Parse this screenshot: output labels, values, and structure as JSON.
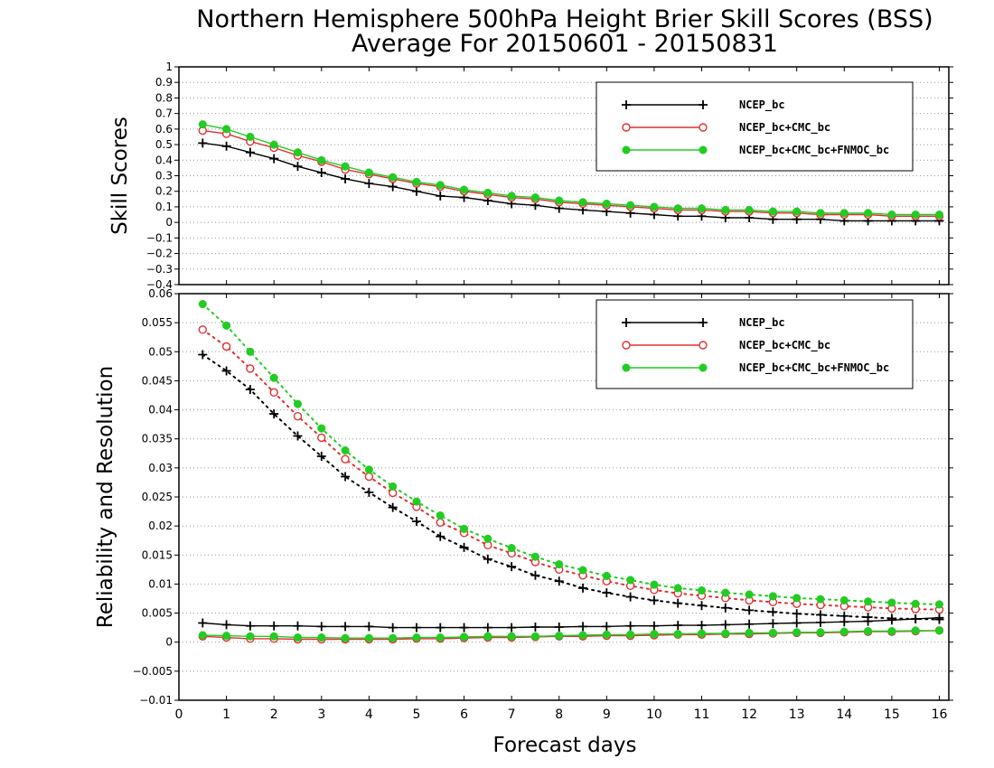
{
  "titles": {
    "line1": "Northern Hemisphere 500hPa Height Brier Skill Scores (BSS)",
    "line2": "Average For 20150601 - 20150831"
  },
  "xlabel": "Forecast days",
  "colors": {
    "NCEP_bc": "#000000",
    "NCEP_bc+CMC_bc": "#e03030",
    "NCEP_bc+CMC_bc+FNMOC_bc": "#22cc22"
  },
  "chart_data": [
    {
      "type": "line",
      "ylabel": "Skill Scores",
      "xlim": [
        0,
        16.2
      ],
      "ylim": [
        -0.4,
        1
      ],
      "x_ticks": [
        "0",
        "1",
        "2",
        "3",
        "4",
        "5",
        "6",
        "7",
        "8",
        "9",
        "10",
        "11",
        "12",
        "13",
        "14",
        "15",
        "16"
      ],
      "y_ticks": [
        "−0.4",
        "−0.3",
        "−0.2",
        "−0.1",
        "0",
        "0.1",
        "0.2",
        "0.3",
        "0.4",
        "0.5",
        "0.6",
        "0.7",
        "0.8",
        "0.9",
        "1"
      ],
      "grid": "horizontal dotted",
      "legend_position": "top-right",
      "x": [
        0.5,
        1,
        1.5,
        2,
        2.5,
        3,
        3.5,
        4,
        4.5,
        5,
        5.5,
        6,
        6.5,
        7,
        7.5,
        8,
        8.5,
        9,
        9.5,
        10,
        10.5,
        11,
        11.5,
        12,
        12.5,
        13,
        13.5,
        14,
        14.5,
        15,
        15.5,
        16
      ],
      "series": [
        {
          "name": "NCEP_bc",
          "marker": "plus",
          "style": "solid",
          "values": [
            0.51,
            0.49,
            0.45,
            0.41,
            0.36,
            0.32,
            0.28,
            0.25,
            0.23,
            0.2,
            0.17,
            0.16,
            0.14,
            0.12,
            0.11,
            0.09,
            0.08,
            0.07,
            0.06,
            0.05,
            0.04,
            0.04,
            0.03,
            0.03,
            0.02,
            0.02,
            0.02,
            0.01,
            0.01,
            0.01,
            0.01,
            0.01
          ]
        },
        {
          "name": "NCEP_bc+CMC_bc",
          "marker": "open-circle",
          "style": "solid",
          "values": [
            0.59,
            0.57,
            0.52,
            0.48,
            0.43,
            0.39,
            0.34,
            0.31,
            0.28,
            0.25,
            0.23,
            0.2,
            0.18,
            0.16,
            0.15,
            0.13,
            0.12,
            0.11,
            0.1,
            0.09,
            0.08,
            0.08,
            0.07,
            0.07,
            0.06,
            0.06,
            0.05,
            0.05,
            0.05,
            0.04,
            0.04,
            0.04
          ]
        },
        {
          "name": "NCEP_bc+CMC_bc+FNMOC_bc",
          "marker": "filled-circle",
          "style": "solid",
          "values": [
            0.63,
            0.6,
            0.55,
            0.5,
            0.45,
            0.4,
            0.36,
            0.32,
            0.29,
            0.26,
            0.24,
            0.21,
            0.19,
            0.17,
            0.16,
            0.14,
            0.13,
            0.12,
            0.11,
            0.1,
            0.09,
            0.09,
            0.08,
            0.08,
            0.07,
            0.07,
            0.06,
            0.06,
            0.06,
            0.05,
            0.05,
            0.05
          ]
        }
      ]
    },
    {
      "type": "line",
      "ylabel": "Reliability and Resolution",
      "xlim": [
        0,
        16.2
      ],
      "ylim": [
        -0.01,
        0.06
      ],
      "x_ticks": [
        "0",
        "1",
        "2",
        "3",
        "4",
        "5",
        "6",
        "7",
        "8",
        "9",
        "10",
        "11",
        "12",
        "13",
        "14",
        "15",
        "16"
      ],
      "y_ticks": [
        "−0.01",
        "−0.005",
        "0",
        "0.005",
        "0.01",
        "0.015",
        "0.02",
        "0.025",
        "0.03",
        "0.035",
        "0.04",
        "0.045",
        "0.05",
        "0.055",
        "0.06"
      ],
      "grid": "horizontal dotted",
      "legend_position": "top-right",
      "x": [
        0.5,
        1,
        1.5,
        2,
        2.5,
        3,
        3.5,
        4,
        4.5,
        5,
        5.5,
        6,
        6.5,
        7,
        7.5,
        8,
        8.5,
        9,
        9.5,
        10,
        10.5,
        11,
        11.5,
        12,
        12.5,
        13,
        13.5,
        14,
        14.5,
        15,
        15.5,
        16
      ],
      "series": [
        {
          "name": "NCEP_bc",
          "marker": "plus",
          "style": "dotted",
          "role": "resolution",
          "values": [
            0.0495,
            0.0467,
            0.0435,
            0.0393,
            0.0355,
            0.032,
            0.0285,
            0.0258,
            0.0232,
            0.0208,
            0.0182,
            0.0163,
            0.0143,
            0.013,
            0.0115,
            0.0105,
            0.0093,
            0.0085,
            0.0078,
            0.0072,
            0.0067,
            0.0063,
            0.0059,
            0.0055,
            0.0052,
            0.0049,
            0.0047,
            0.0045,
            0.0043,
            0.0041,
            0.004,
            0.0039
          ]
        },
        {
          "name": "NCEP_bc+CMC_bc",
          "marker": "open-circle",
          "style": "dotted",
          "role": "resolution",
          "values": [
            0.0538,
            0.0509,
            0.0471,
            0.043,
            0.0389,
            0.0352,
            0.0315,
            0.0285,
            0.0257,
            0.0233,
            0.0206,
            0.0188,
            0.0167,
            0.0153,
            0.0138,
            0.0125,
            0.0115,
            0.0105,
            0.0097,
            0.009,
            0.0084,
            0.008,
            0.0076,
            0.0072,
            0.0069,
            0.0066,
            0.0064,
            0.0062,
            0.006,
            0.0058,
            0.0057,
            0.0056
          ]
        },
        {
          "name": "NCEP_bc+CMC_bc+FNMOC_bc",
          "marker": "filled-circle",
          "style": "dotted",
          "role": "resolution",
          "values": [
            0.0582,
            0.0545,
            0.05,
            0.0455,
            0.041,
            0.0368,
            0.033,
            0.0297,
            0.0268,
            0.0242,
            0.0218,
            0.0195,
            0.0178,
            0.0162,
            0.0147,
            0.0134,
            0.0124,
            0.0114,
            0.0107,
            0.0099,
            0.0093,
            0.0089,
            0.0085,
            0.0082,
            0.0079,
            0.0076,
            0.0074,
            0.0072,
            0.007,
            0.0068,
            0.0066,
            0.0065
          ]
        },
        {
          "name": "NCEP_bc",
          "marker": "plus",
          "style": "solid",
          "role": "reliability",
          "values": [
            0.0033,
            0.003,
            0.0028,
            0.0028,
            0.0028,
            0.0027,
            0.0027,
            0.0027,
            0.0025,
            0.0025,
            0.0025,
            0.0025,
            0.0025,
            0.0025,
            0.0026,
            0.0026,
            0.0027,
            0.0027,
            0.0028,
            0.0028,
            0.0029,
            0.0029,
            0.003,
            0.0031,
            0.0032,
            0.0033,
            0.0034,
            0.0035,
            0.0036,
            0.0038,
            0.004,
            0.0042
          ]
        },
        {
          "name": "NCEP_bc+CMC_bc",
          "marker": "open-circle",
          "style": "solid",
          "role": "reliability",
          "values": [
            0.001,
            0.0008,
            0.0006,
            0.0006,
            0.0005,
            0.0005,
            0.0005,
            0.0005,
            0.0005,
            0.0006,
            0.0006,
            0.0007,
            0.0008,
            0.0008,
            0.0009,
            0.001,
            0.001,
            0.0011,
            0.0011,
            0.0012,
            0.0013,
            0.0013,
            0.0014,
            0.0014,
            0.0015,
            0.0016,
            0.0016,
            0.0017,
            0.0018,
            0.0018,
            0.0019,
            0.002
          ]
        },
        {
          "name": "NCEP_bc+CMC_bc+FNMOC_bc",
          "marker": "filled-circle",
          "style": "solid",
          "role": "reliability",
          "values": [
            0.0012,
            0.0011,
            0.001,
            0.001,
            0.0008,
            0.0008,
            0.0007,
            0.0007,
            0.0007,
            0.0008,
            0.0008,
            0.0009,
            0.001,
            0.001,
            0.001,
            0.0011,
            0.0012,
            0.0013,
            0.0013,
            0.0014,
            0.0014,
            0.0015,
            0.0015,
            0.0016,
            0.0016,
            0.0017,
            0.0017,
            0.0018,
            0.0019,
            0.0019,
            0.002,
            0.002
          ]
        }
      ]
    }
  ]
}
